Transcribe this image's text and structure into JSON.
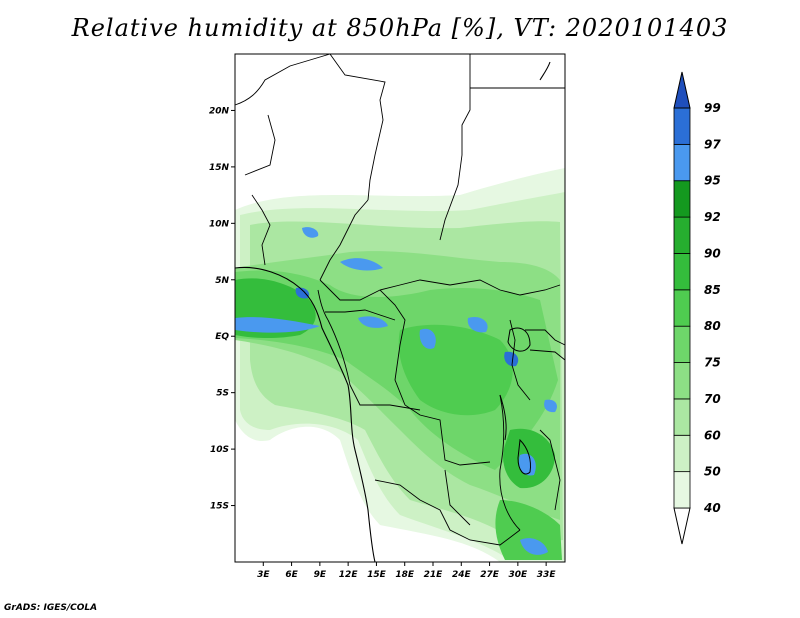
{
  "title": "Relative humidity at 850hPa [%], VT: 2020101403",
  "credit": "GrADS: IGES/COLA",
  "map": {
    "lon_range": [
      0,
      35
    ],
    "lat_range": [
      -20,
      25
    ],
    "y_ticks": [
      "20N",
      "15N",
      "10N",
      "5N",
      "EQ",
      "5S",
      "10S",
      "15S"
    ],
    "x_ticks": [
      "3E",
      "6E",
      "9E",
      "12E",
      "15E",
      "18E",
      "21E",
      "24E",
      "27E",
      "30E",
      "33E"
    ]
  },
  "colorbar": {
    "levels": [
      "40",
      "50",
      "60",
      "70",
      "75",
      "80",
      "85",
      "90",
      "92",
      "95",
      "97",
      "99"
    ],
    "colors": [
      "#ffffff",
      "#e6f8e2",
      "#cdf1c5",
      "#abe7a2",
      "#8ddf85",
      "#6ed66a",
      "#4fcc50",
      "#34bd3c",
      "#26ae2f",
      "#14991f",
      "#4a99ef",
      "#2b6fd6",
      "#1f4fbc"
    ]
  }
}
